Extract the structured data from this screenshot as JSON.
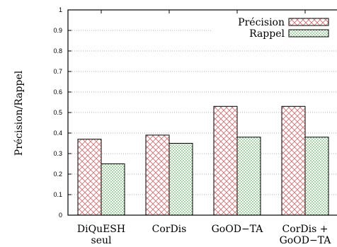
{
  "chart_data": {
    "type": "bar",
    "title": "",
    "xlabel": "",
    "ylabel": "Précision/Rappel",
    "ylim": [
      0,
      1
    ],
    "yticks": [
      0,
      0.1,
      0.2,
      0.3,
      0.4,
      0.5,
      0.6,
      0.7,
      0.8,
      0.9,
      1
    ],
    "categories": [
      [
        "DiQuESH",
        "seul"
      ],
      [
        "CorDis"
      ],
      [
        "GoOD−TA"
      ],
      [
        "CorDis +",
        "GoOD−TA"
      ]
    ],
    "series": [
      {
        "name": "Précision",
        "values": [
          0.37,
          0.39,
          0.53,
          0.53
        ],
        "color": "#e06666",
        "pattern": "crosshatch"
      },
      {
        "name": "Rappel",
        "values": [
          0.25,
          0.35,
          0.38,
          0.38
        ],
        "color": "#66bb66",
        "pattern": "dots"
      }
    ],
    "grid": "horizontal-dotted",
    "legend": "top-right"
  }
}
